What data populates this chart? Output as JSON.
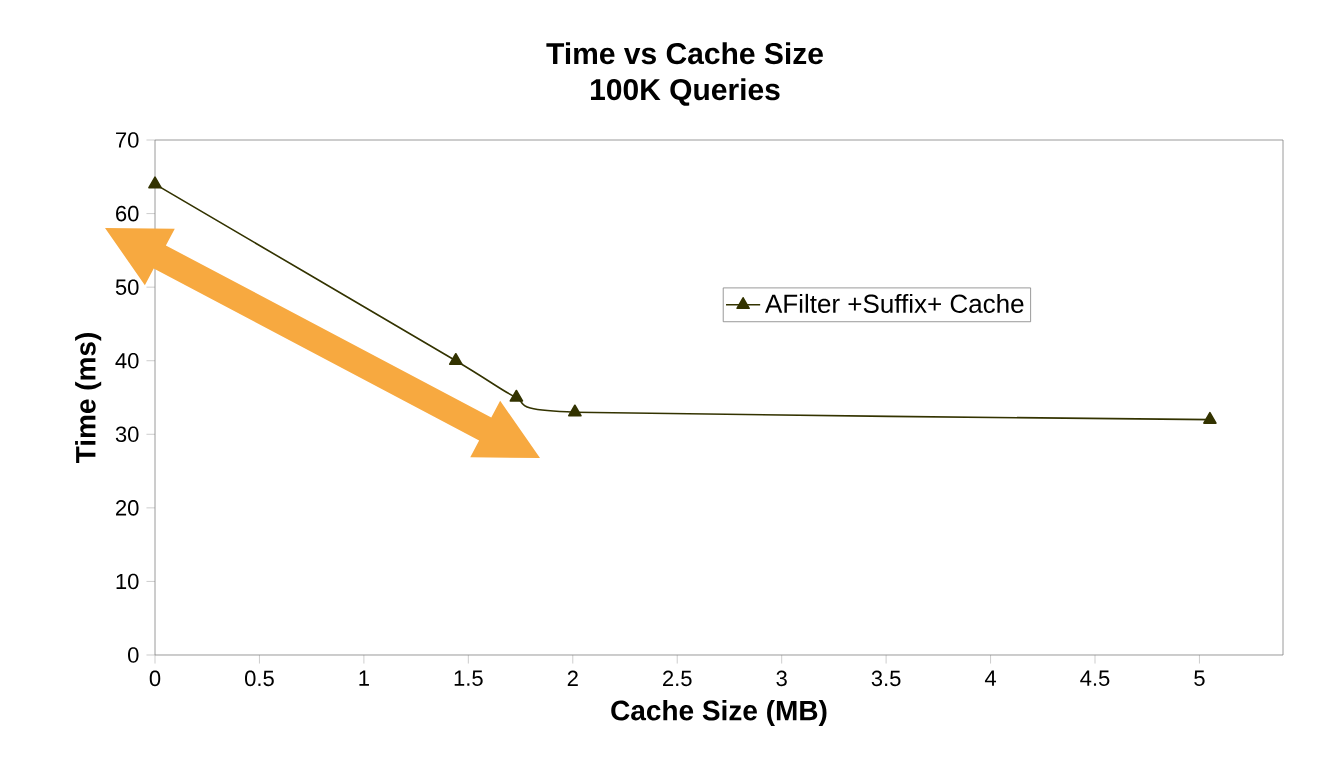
{
  "chart_data": {
    "type": "line",
    "title": "Time vs Cache Size",
    "subtitle": "100K Queries",
    "xlabel": "Cache Size (MB)",
    "ylabel": "Time (ms)",
    "x": [
      0,
      1.44,
      1.73,
      2.01,
      5.05
    ],
    "series": [
      {
        "name": "AFilter +Suffix+ Cache",
        "color": "#333300",
        "values": [
          64,
          40,
          35,
          33,
          32
        ]
      }
    ],
    "xlim": [
      0,
      5.4
    ],
    "xticks": [
      0,
      0.5,
      1,
      1.5,
      2,
      2.5,
      3,
      3.5,
      4,
      4.5,
      5
    ],
    "ylim": [
      0,
      70
    ],
    "yticks": [
      0,
      10,
      20,
      30,
      40,
      50,
      60,
      70
    ],
    "marker": "triangle",
    "line_style": "solid",
    "grid": false,
    "legend": "right"
  }
}
